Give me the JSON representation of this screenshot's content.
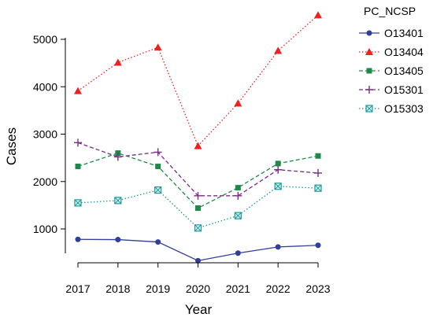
{
  "chart_data": {
    "type": "line",
    "xlabel": "Year",
    "ylabel": "Cases",
    "x": [
      2017,
      2018,
      2019,
      2020,
      2021,
      2022,
      2023
    ],
    "yticks": [
      1000,
      2000,
      3000,
      4000,
      5000
    ],
    "ylim": [
      200,
      5600
    ],
    "legend_title": "PC_NCSP",
    "legend_position": "right",
    "grid": false,
    "series": [
      {
        "name": "O13401",
        "color": "#2f3f9a",
        "marker": "circle",
        "dash": "solid",
        "values": [
          780,
          775,
          725,
          330,
          490,
          620,
          655
        ]
      },
      {
        "name": "O13404",
        "color": "#ee2020",
        "marker": "triangle",
        "dash": "dotted",
        "values": [
          3910,
          4510,
          4830,
          2750,
          3650,
          4760,
          5510
        ]
      },
      {
        "name": "O13405",
        "color": "#1e8a4a",
        "marker": "square",
        "dash": "dashed",
        "values": [
          2320,
          2600,
          2320,
          1440,
          1870,
          2380,
          2540
        ]
      },
      {
        "name": "O15301",
        "color": "#7b2a8a",
        "marker": "plus",
        "dash": "dashed",
        "values": [
          2820,
          2520,
          2620,
          1700,
          1700,
          2250,
          2180
        ]
      },
      {
        "name": "O15303",
        "color": "#1a9a9a",
        "marker": "boxcross",
        "dash": "dotted",
        "values": [
          1550,
          1600,
          1820,
          1020,
          1280,
          1900,
          1860
        ]
      }
    ]
  }
}
